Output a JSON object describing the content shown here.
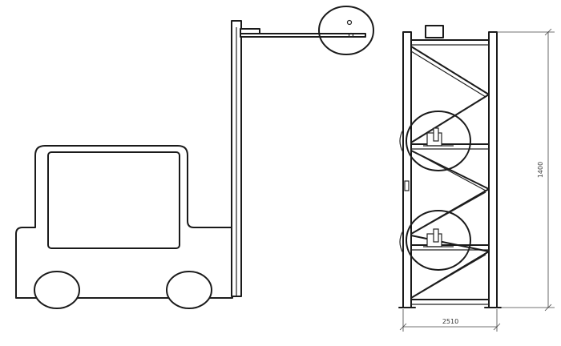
{
  "drawing": {
    "dimensions": {
      "height_label": "1400",
      "width_label": "2510"
    }
  },
  "colors": {
    "line": "#1a1a1a",
    "background": "#ffffff"
  }
}
